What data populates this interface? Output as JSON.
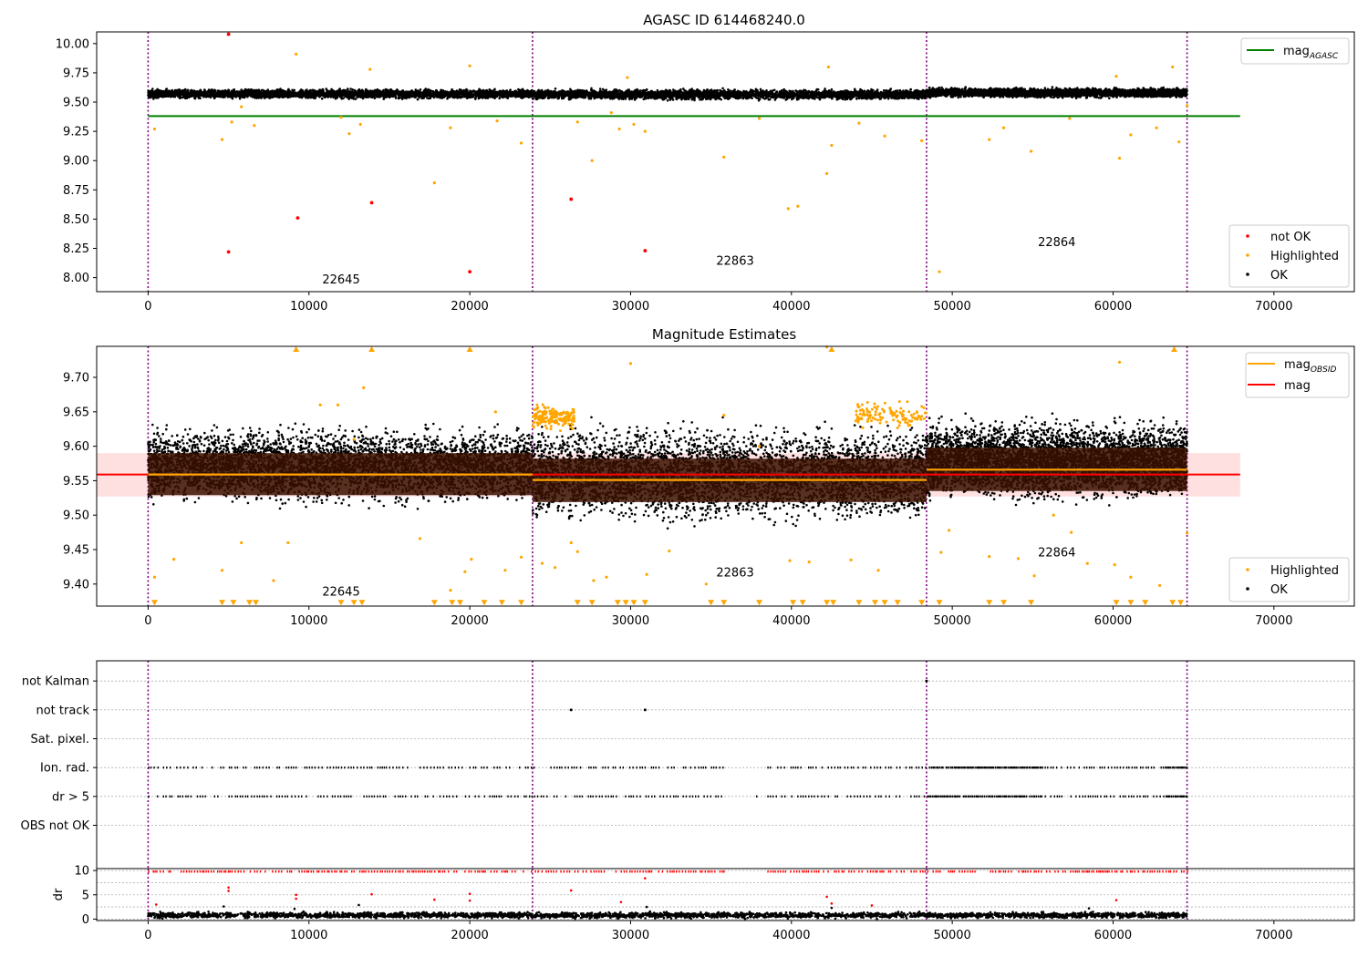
{
  "colors": {
    "ok": "#000000",
    "not_ok": "#ff0000",
    "highlighted": "#ffa500",
    "mag_agasc": "#008000",
    "mag_obsid": "#ffa500",
    "mag": "#ff0000",
    "obsid_boundary": "#800080",
    "error_band": "#ffcccc",
    "obsid_band": "#3a1000",
    "grid": "#b0b0b0"
  },
  "chart_data": [
    {
      "type": "scatter",
      "title": "AGASC ID 614468240.0",
      "xlabel": "",
      "ylabel": "",
      "xlim": [
        -3200,
        75000
      ],
      "ylim": [
        7.88,
        10.1
      ],
      "xticks": [
        0,
        10000,
        20000,
        30000,
        40000,
        50000,
        60000,
        70000
      ],
      "xtick_labels": [
        "0",
        "10000",
        "20000",
        "30000",
        "40000",
        "50000",
        "60000",
        "70000"
      ],
      "yticks": [
        8.0,
        8.25,
        8.5,
        8.75,
        9.0,
        9.25,
        9.5,
        9.75,
        10.0
      ],
      "ytick_labels": [
        "8.00",
        "8.25",
        "8.50",
        "8.75",
        "9.00",
        "9.25",
        "9.50",
        "9.75",
        "10.00"
      ],
      "grid": false,
      "obsid_boundaries": [
        0,
        23900,
        48400,
        64600
      ],
      "obsid_labels": [
        {
          "text": "22645",
          "x": 12000,
          "y": 7.95
        },
        {
          "text": "22863",
          "x": 36500,
          "y": 8.11
        },
        {
          "text": "22864",
          "x": 56500,
          "y": 8.27
        }
      ],
      "ok_band": {
        "segments": [
          {
            "x": [
              0,
              23900
            ],
            "y": [
              9.52,
              9.62
            ]
          },
          {
            "x": [
              23900,
              48400
            ],
            "y": [
              9.51,
              9.62
            ]
          },
          {
            "x": [
              48400,
              64600
            ],
            "y": [
              9.53,
              9.63
            ]
          }
        ]
      },
      "lines": [
        {
          "name": "mag$_{AGASC}$",
          "legend_label": "mag",
          "legend_sub": "AGASC",
          "x": [
            0,
            67900
          ],
          "y": [
            9.38,
            9.38
          ],
          "color": "#008000"
        }
      ],
      "series": [
        {
          "name": "not OK",
          "color": "#ff0000",
          "x": [
            5000,
            5000,
            9300,
            13900,
            20000,
            26300,
            30900
          ],
          "y": [
            10.08,
            8.22,
            8.51,
            8.64,
            8.05,
            8.67,
            8.23
          ]
        },
        {
          "name": "Highlighted",
          "color": "#ffa500",
          "x": [
            400,
            4600,
            5200,
            5800,
            6600,
            9200,
            12000,
            12500,
            13200,
            13800,
            17800,
            18800,
            20000,
            21700,
            23200,
            26700,
            27600,
            28800,
            29300,
            29800,
            30200,
            30900,
            35800,
            38000,
            39800,
            40400,
            42200,
            42500,
            42300,
            44200,
            45800,
            48100,
            49200,
            52300,
            53200,
            54900,
            57300,
            60200,
            60400,
            61100,
            62700,
            63700,
            64100,
            64600
          ],
          "y": [
            9.27,
            9.18,
            9.33,
            9.46,
            9.3,
            9.91,
            9.37,
            9.23,
            9.31,
            9.78,
            8.81,
            9.28,
            9.81,
            9.34,
            9.15,
            9.33,
            9.0,
            9.41,
            9.27,
            9.71,
            9.31,
            9.25,
            9.03,
            9.36,
            8.59,
            8.61,
            8.89,
            9.13,
            9.8,
            9.32,
            9.21,
            9.17,
            8.05,
            9.18,
            9.28,
            9.08,
            9.36,
            9.72,
            9.02,
            9.22,
            9.28,
            9.8,
            9.16,
            9.47
          ]
        },
        {
          "name": "OK",
          "color": "#000000",
          "x": [],
          "y": []
        }
      ],
      "legends": [
        {
          "position": "upper right",
          "entries": [
            "mag$_{AGASC}$"
          ]
        },
        {
          "position": "lower right",
          "entries": [
            "not OK",
            "Highlighted",
            "OK"
          ]
        }
      ]
    },
    {
      "type": "scatter",
      "title": "Magnitude Estimates",
      "xlabel": "",
      "ylabel": "",
      "xlim": [
        -3200,
        75000
      ],
      "ylim": [
        9.368,
        9.745
      ],
      "xticks": [
        0,
        10000,
        20000,
        30000,
        40000,
        50000,
        60000,
        70000
      ],
      "xtick_labels": [
        "0",
        "10000",
        "20000",
        "30000",
        "40000",
        "50000",
        "60000",
        "70000"
      ],
      "yticks": [
        9.4,
        9.45,
        9.5,
        9.55,
        9.6,
        9.65,
        9.7
      ],
      "ytick_labels": [
        "9.40",
        "9.45",
        "9.50",
        "9.55",
        "9.60",
        "9.65",
        "9.70"
      ],
      "grid": false,
      "obsid_boundaries": [
        0,
        23900,
        48400,
        64600
      ],
      "obsid_labels": [
        {
          "text": "22645",
          "x": 12000,
          "y": 9.383
        },
        {
          "text": "22863",
          "x": 36500,
          "y": 9.411
        },
        {
          "text": "22864",
          "x": 56500,
          "y": 9.44
        }
      ],
      "ok_band": {
        "segments": [
          {
            "x": [
              0,
              23900
            ],
            "y": [
              9.505,
              9.64
            ]
          },
          {
            "x": [
              23900,
              48400
            ],
            "y": [
              9.475,
              9.645
            ]
          },
          {
            "x": [
              48400,
              64600
            ],
            "y": [
              9.51,
              9.65
            ]
          }
        ]
      },
      "mag_band": {
        "x": [
          -3200,
          67900
        ],
        "y": [
          9.527,
          9.59
        ]
      },
      "obsid_error_boxes": [
        {
          "x": [
            0,
            23900
          ],
          "y": [
            9.529,
            9.59
          ]
        },
        {
          "x": [
            23900,
            48400
          ],
          "y": [
            9.519,
            9.582
          ]
        },
        {
          "x": [
            48400,
            64600
          ],
          "y": [
            9.535,
            9.598
          ]
        }
      ],
      "lines": [
        {
          "name": "mag$_{OBSID}$",
          "legend_label": "mag",
          "legend_sub": "OBSID",
          "color": "#ffa500",
          "segments": [
            {
              "x": [
                0,
                23900
              ],
              "y": [
                9.559,
                9.559
              ]
            },
            {
              "x": [
                23900,
                48400
              ],
              "y": [
                9.551,
                9.551
              ]
            },
            {
              "x": [
                48400,
                64600
              ],
              "y": [
                9.566,
                9.566
              ]
            }
          ]
        },
        {
          "name": "mag",
          "legend_label": "mag",
          "legend_sub": "",
          "color": "#ff0000",
          "x": [
            -3200,
            67900
          ],
          "y": [
            9.559,
            9.559
          ]
        }
      ],
      "series": [
        {
          "name": "Highlighted",
          "color": "#ffa500",
          "x": [
            400,
            1600,
            4600,
            5800,
            7800,
            8700,
            10700,
            11800,
            12800,
            13400,
            16900,
            18800,
            19700,
            20100,
            21600,
            22200,
            23200,
            24500,
            25300,
            26300,
            26700,
            27700,
            28500,
            30000,
            31000,
            32400,
            34700,
            35800,
            38000,
            39900,
            41100,
            42200,
            43700,
            45400,
            49300,
            49800,
            52300,
            54100,
            55100,
            56300,
            57400,
            58400,
            60100,
            60400,
            61100,
            62900,
            64600
          ],
          "y": [
            9.41,
            9.436,
            9.42,
            9.46,
            9.405,
            9.46,
            9.66,
            9.66,
            9.61,
            9.685,
            9.466,
            9.391,
            9.418,
            9.436,
            9.65,
            9.42,
            9.439,
            9.43,
            9.424,
            9.46,
            9.447,
            9.405,
            9.41,
            9.72,
            9.414,
            9.448,
            9.4,
            9.645,
            9.6,
            9.434,
            9.432,
            9.744,
            9.435,
            9.42,
            9.446,
            9.478,
            9.44,
            9.437,
            9.412,
            9.5,
            9.475,
            9.43,
            9.428,
            9.722,
            9.41,
            9.398,
            9.474
          ]
        },
        {
          "name": "Highlighted (clipped low)",
          "color": "#ffa500",
          "marker": "v",
          "x": [
            400,
            4600,
            5300,
            6300,
            6700,
            12000,
            12800,
            13300,
            17800,
            18900,
            19400,
            20900,
            22000,
            23200,
            26700,
            27600,
            29200,
            29700,
            30200,
            30900,
            35000,
            35800,
            38000,
            40100,
            40700,
            42200,
            42600,
            44200,
            45200,
            45800,
            46600,
            48100,
            49200,
            52300,
            53200,
            54900,
            60200,
            61100,
            62000,
            63700,
            64200
          ],
          "y": [
            9.373,
            9.373,
            9.373,
            9.373,
            9.373,
            9.373,
            9.373,
            9.373,
            9.373,
            9.373,
            9.373,
            9.373,
            9.373,
            9.373,
            9.373,
            9.373,
            9.373,
            9.373,
            9.373,
            9.373,
            9.373,
            9.373,
            9.373,
            9.373,
            9.373,
            9.373,
            9.373,
            9.373,
            9.373,
            9.373,
            9.373,
            9.373,
            9.373,
            9.373,
            9.373,
            9.373,
            9.373,
            9.373,
            9.373,
            9.373,
            9.373
          ]
        },
        {
          "name": "Highlighted (clipped high)",
          "color": "#ffa500",
          "marker": "^",
          "x": [
            9200,
            13900,
            20000,
            42500,
            63800
          ],
          "y": [
            9.741,
            9.741,
            9.741,
            9.741,
            9.741
          ]
        },
        {
          "name": "OK",
          "color": "#000000",
          "x": [],
          "y": []
        }
      ],
      "legends": [
        {
          "position": "upper right",
          "entries": [
            "mag$_{OBSID}$",
            "mag"
          ]
        },
        {
          "position": "lower right",
          "entries": [
            "Highlighted",
            "OK"
          ]
        }
      ]
    },
    {
      "type": "scatter",
      "title": "",
      "xlabel": "",
      "ylabel": "",
      "xlim": [
        -3200,
        75000
      ],
      "ylim": [
        -0.5,
        6.7
      ],
      "xticks": [],
      "xtick_labels": [],
      "yticks": [
        6,
        5,
        4,
        3,
        2,
        1
      ],
      "ytick_labels": [
        "not Kalman",
        "not track",
        "Sat. pixel.",
        "Ion. rad.",
        "dr > 5",
        "OBS not OK"
      ],
      "grid": true,
      "obsid_boundaries": [
        0,
        23900,
        48400,
        64600
      ],
      "flag_runs": [
        {
          "flag": "Ion. rad.",
          "y": 3,
          "x_ranges": [
            [
              0,
              36000
            ],
            [
              37800,
              37900
            ],
            [
              38500,
              64600
            ]
          ],
          "dense_ranges": [
            [
              48400,
              55500
            ],
            [
              63200,
              64600
            ]
          ]
        },
        {
          "flag": "dr > 5",
          "y": 2,
          "x_ranges": [
            [
              0,
              36000
            ],
            [
              37800,
              37900
            ],
            [
              38500,
              64600
            ]
          ],
          "dense_ranges": [
            [
              48400,
              55500
            ],
            [
              63200,
              64600
            ]
          ]
        }
      ],
      "series": [
        {
          "name": "not track",
          "color": "#000000",
          "x": [
            26300,
            30900
          ],
          "y": [
            5,
            5
          ]
        },
        {
          "name": "not Kalman",
          "color": "#000000",
          "x": [
            48400
          ],
          "y": [
            6
          ]
        }
      ],
      "legends": []
    },
    {
      "type": "scatter",
      "title": "",
      "xlabel": "",
      "ylabel": "dr",
      "xlim": [
        -3200,
        75000
      ],
      "ylim": [
        -0.3,
        10.4
      ],
      "xticks": [
        0,
        10000,
        20000,
        30000,
        40000,
        50000,
        60000,
        70000
      ],
      "xtick_labels": [
        "0",
        "10000",
        "20000",
        "30000",
        "40000",
        "50000",
        "60000",
        "70000"
      ],
      "yticks": [
        0,
        5,
        10
      ],
      "ytick_labels": [
        "0",
        "5",
        "10"
      ],
      "grid": true,
      "obsid_boundaries": [
        0,
        23900,
        48400,
        64600
      ],
      "dr_ok_band": {
        "x": [
          0,
          64600
        ],
        "y": [
          0.0,
          1.6
        ]
      },
      "dr_clipped_runs": {
        "y": 9.8,
        "x_ranges": [
          [
            0,
            36000
          ],
          [
            37800,
            37900
          ],
          [
            38500,
            64600
          ]
        ]
      },
      "series": [
        {
          "name": "dr (not OK)",
          "color": "#ff0000",
          "x": [
            500,
            5000,
            5000,
            9200,
            9200,
            13900,
            17800,
            20000,
            20000,
            26300,
            29400,
            30900,
            42200,
            42500,
            45000,
            60200
          ],
          "y": [
            3.0,
            6.5,
            5.8,
            5.0,
            4.2,
            5.1,
            4.0,
            5.2,
            3.8,
            5.9,
            3.5,
            8.4,
            4.6,
            3.2,
            2.8,
            3.9
          ]
        },
        {
          "name": "dr (OK)",
          "color": "#000000",
          "x": [
            4700,
            9100,
            13100,
            31000,
            42500,
            58500
          ],
          "y": [
            2.6,
            2.1,
            2.9,
            2.5,
            2.3,
            2.2
          ]
        }
      ],
      "legends": []
    }
  ]
}
